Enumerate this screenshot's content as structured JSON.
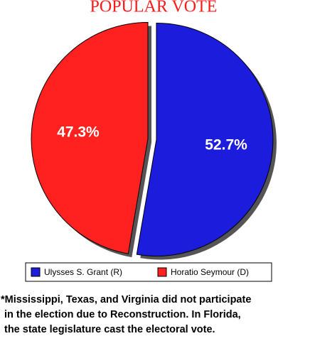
{
  "chart_data": {
    "type": "pie",
    "title": "POPULAR VOTE",
    "categories": [
      "Ulysses S. Grant (R)",
      "Horatio Seymour (D)"
    ],
    "values": [
      52.7,
      47.3
    ],
    "value_labels": [
      "52.7%",
      "47.3%"
    ],
    "colors": [
      "#1c1cdc",
      "#ff2020"
    ],
    "notes": [
      "*Mississippi, Texas, and Virginia did not participate",
      "in the election due to Reconstruction. In Florida,",
      "the state legislature cast the electoral vote."
    ]
  }
}
